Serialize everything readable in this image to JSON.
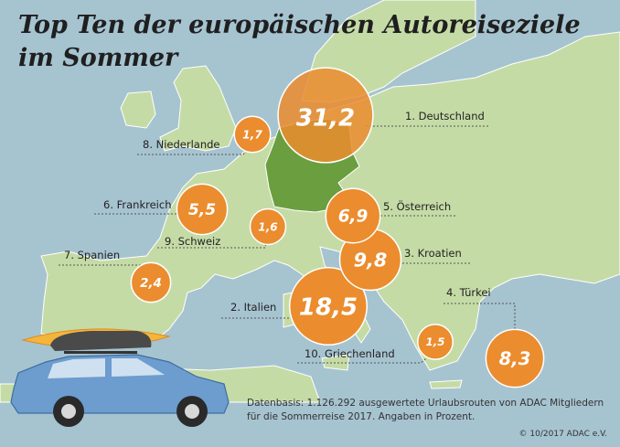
{
  "title_line1": "Top Ten der europäischen Autoreiseziele",
  "title_line2": "im Sommer",
  "chart_data": {
    "type": "bubble-map",
    "unit": "%",
    "entries": [
      {
        "rank": 1,
        "label": "1. Deutschland",
        "value": 31.2,
        "value_text": "31,2"
      },
      {
        "rank": 2,
        "label": "2. Italien",
        "value": 18.5,
        "value_text": "18,5"
      },
      {
        "rank": 3,
        "label": "3. Kroatien",
        "value": 9.8,
        "value_text": "9,8"
      },
      {
        "rank": 4,
        "label": "4. Türkei",
        "value": 8.3,
        "value_text": "8,3"
      },
      {
        "rank": 5,
        "label": "5. Österreich",
        "value": 6.9,
        "value_text": "6,9"
      },
      {
        "rank": 6,
        "label": "6. Frankreich",
        "value": 5.5,
        "value_text": "5,5"
      },
      {
        "rank": 7,
        "label": "7. Spanien",
        "value": 2.4,
        "value_text": "2,4"
      },
      {
        "rank": 8,
        "label": "8. Niederlande",
        "value": 1.7,
        "value_text": "1,7"
      },
      {
        "rank": 9,
        "label": "9. Schweiz",
        "value": 1.6,
        "value_text": "1,6"
      },
      {
        "rank": 10,
        "label": "10. Griechenland",
        "value": 1.5,
        "value_text": "1,5"
      }
    ]
  },
  "footnote": "Datenbasis: 1.126.292 ausgewertete Urlaubsrouten von ADAC Mitgliedern für die Sommerreise 2017. Angaben in Prozent.",
  "copyright": "© 10/2017 ADAC e.V.",
  "colors": {
    "sea": "#a6c3d0",
    "land": "#c5dba6",
    "germany": "#6a9e3f",
    "bubble": "#eb8c2e",
    "bubble_light": "#f2a65a",
    "car": "#6d9ccf",
    "roofbox": "#4a4a4a",
    "surfboard": "#f4b53b"
  }
}
